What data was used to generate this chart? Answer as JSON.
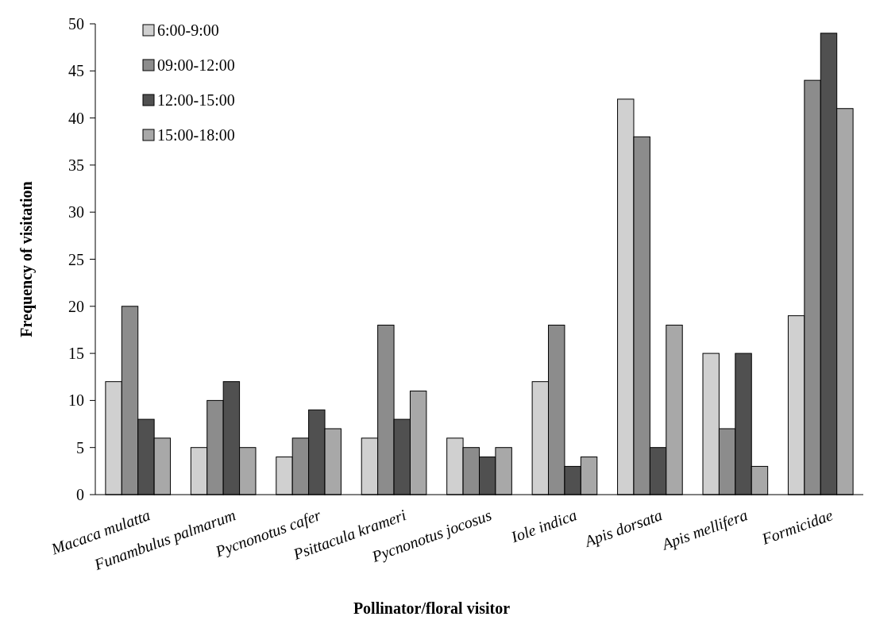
{
  "chart_data": {
    "type": "bar",
    "xlabel": "Pollinator/floral  visitor",
    "ylabel": "Frequency  of visitation",
    "categories": [
      "Macaca mulatta",
      "Funambulus palmarum",
      "Pycnonotus cafer",
      "Psittacula krameri",
      "Pycnonotus jocosus",
      "Iole indica",
      "Apis dorsata",
      "Apis mellifera",
      "Formicidae"
    ],
    "series": [
      {
        "name": "6:00-9:00",
        "color": "#d0d0d0",
        "values": [
          12,
          5,
          4,
          6,
          6,
          12,
          42,
          15,
          19
        ]
      },
      {
        "name": "09:00-12:00",
        "color": "#8c8c8c",
        "values": [
          20,
          10,
          6,
          18,
          5,
          18,
          38,
          7,
          44
        ]
      },
      {
        "name": "12:00-15:00",
        "color": "#505050",
        "values": [
          8,
          12,
          9,
          8,
          4,
          3,
          5,
          15,
          49
        ]
      },
      {
        "name": "15:00-18:00",
        "color": "#a8a8a8",
        "values": [
          6,
          5,
          7,
          11,
          5,
          4,
          18,
          3,
          41
        ]
      }
    ],
    "ylim": [
      0,
      50
    ],
    "yticks": [
      0,
      5,
      10,
      15,
      20,
      25,
      30,
      35,
      40,
      45,
      50
    ],
    "legend": "top left"
  }
}
